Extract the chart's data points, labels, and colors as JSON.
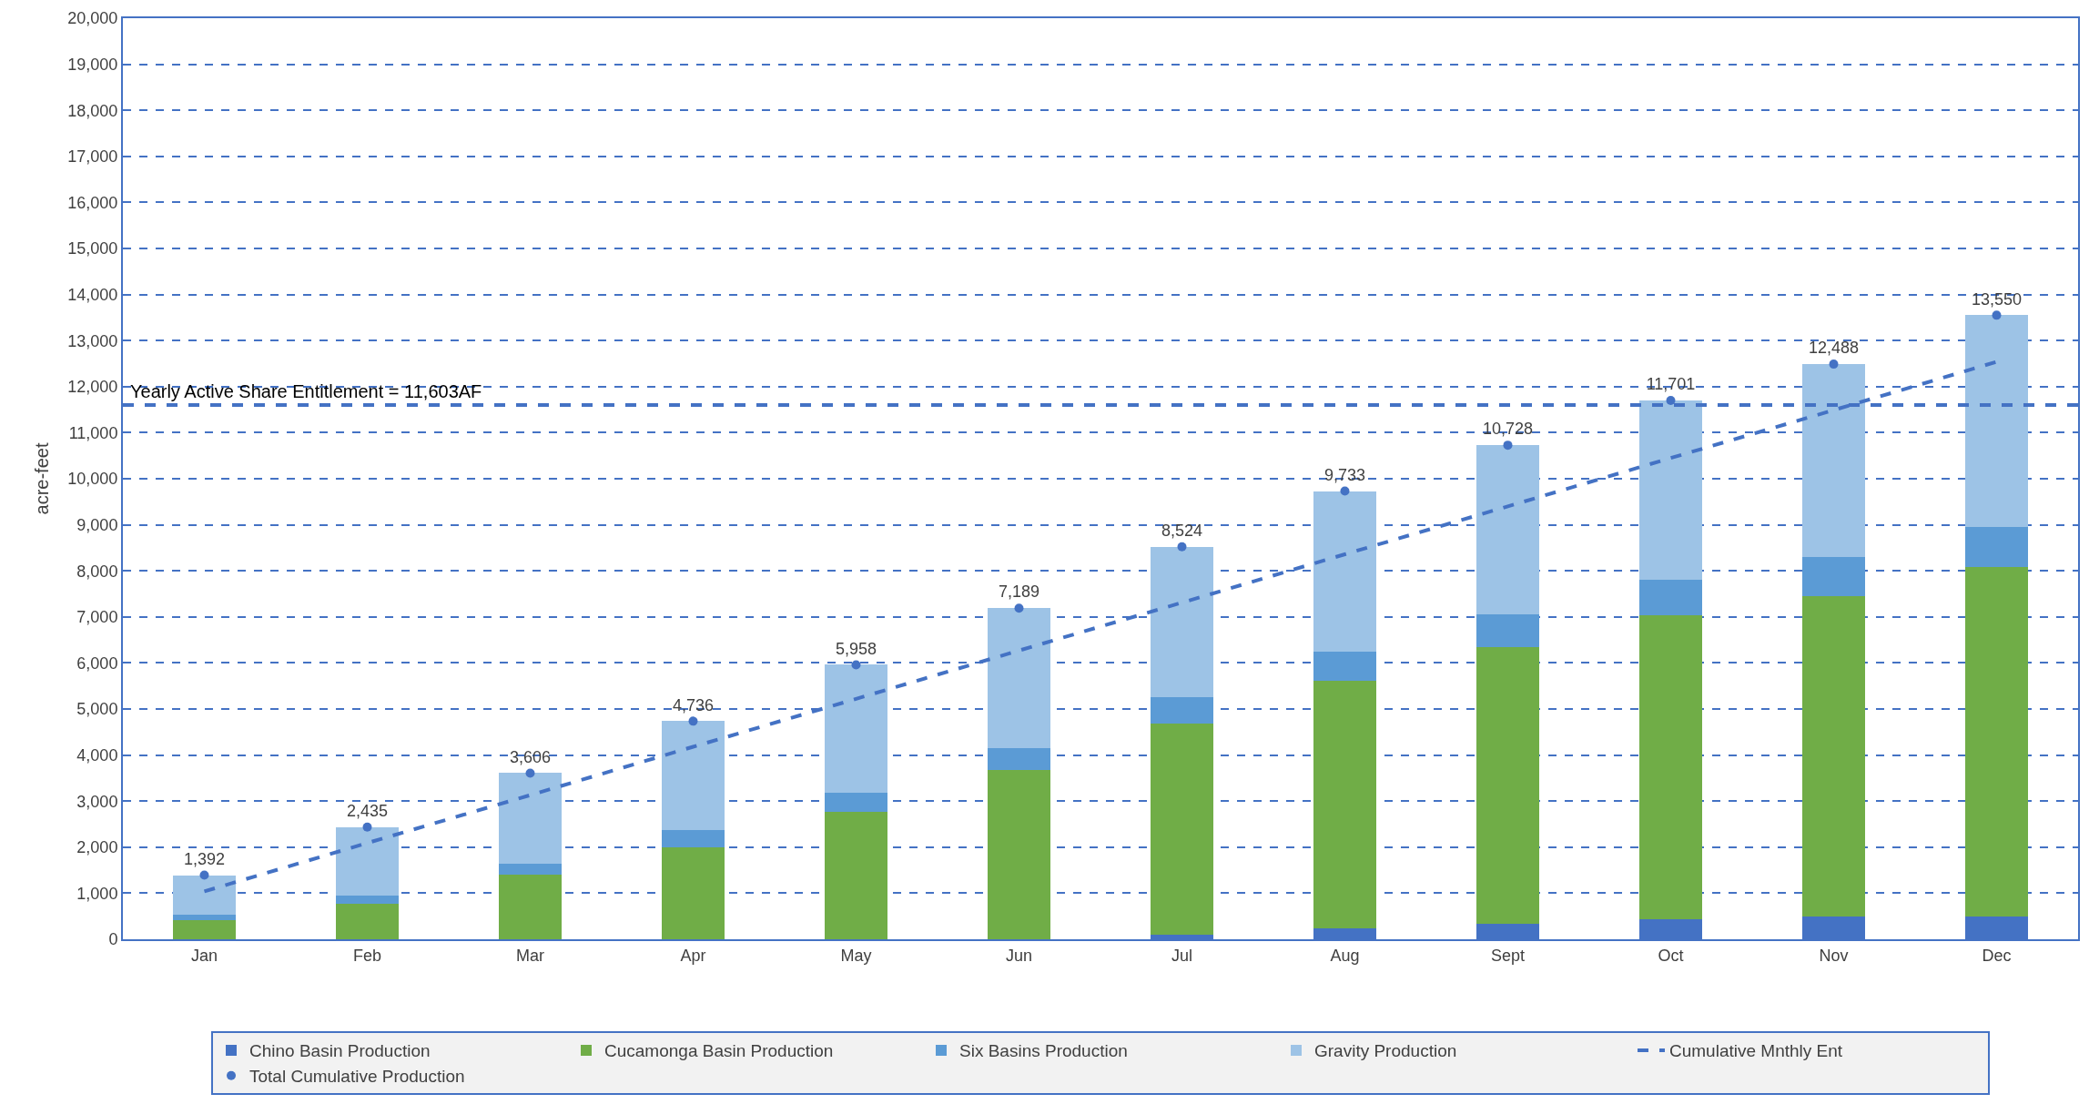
{
  "chart_data": {
    "type": "bar",
    "stacked": true,
    "ylabel": "acre-feet",
    "categories": [
      "Jan",
      "Feb",
      "Mar",
      "Apr",
      "May",
      "Jun",
      "Jul",
      "Aug",
      "Sept",
      "Oct",
      "Nov",
      "Dec"
    ],
    "series": [
      {
        "name": "Chino Basin Production",
        "color": "#4472c4",
        "values": [
          0,
          0,
          0,
          0,
          0,
          0,
          100,
          230,
          330,
          430,
          500,
          500
        ]
      },
      {
        "name": "Cucamonga Basin Production",
        "color": "#70ad47",
        "values": [
          420,
          780,
          1400,
          2000,
          2760,
          3670,
          4580,
          5390,
          6010,
          6610,
          6950,
          7580
        ]
      },
      {
        "name": "Six Basins Production",
        "color": "#5b9bd5",
        "values": [
          110,
          170,
          250,
          380,
          420,
          480,
          570,
          630,
          710,
          760,
          850,
          870
        ]
      },
      {
        "name": "Gravity Production",
        "color": "#9dc3e6",
        "values": [
          860,
          1490,
          1960,
          2360,
          2780,
          3040,
          3270,
          3480,
          3680,
          3900,
          4190,
          4600
        ]
      },
      {
        "name": "Cumulative Mnthly Ent",
        "type": "line",
        "color": "#4472c4",
        "line_style": "dashed",
        "marker": "none",
        "values": [
          1040,
          2090,
          3130,
          4180,
          5220,
          6270,
          7310,
          8360,
          9400,
          10450,
          11490,
          12540
        ]
      },
      {
        "name": "Total Cumulative Production",
        "type": "scatter",
        "color": "#4472c4",
        "marker": "circle",
        "values": [
          1392,
          2435,
          3606,
          4736,
          5958,
          7189,
          8524,
          9733,
          10728,
          11701,
          12488,
          13550
        ],
        "value_labels": [
          "1,392",
          "2,435",
          "3,606",
          "4,736",
          "5,958",
          "7,189",
          "8,524",
          "9,733",
          "10,728",
          "11,701",
          "12,488",
          "13,550"
        ]
      }
    ],
    "ylim": [
      0,
      20000
    ],
    "yticks": [
      {
        "value": 0,
        "label": "0"
      },
      {
        "value": 1000,
        "label": "1,000"
      },
      {
        "value": 2000,
        "label": "2,000"
      },
      {
        "value": 3000,
        "label": "3,000"
      },
      {
        "value": 4000,
        "label": "4,000"
      },
      {
        "value": 5000,
        "label": "5,000"
      },
      {
        "value": 6000,
        "label": "6,000"
      },
      {
        "value": 7000,
        "label": "7,000"
      },
      {
        "value": 8000,
        "label": "8,000"
      },
      {
        "value": 9000,
        "label": "9,000"
      },
      {
        "value": 10000,
        "label": "10,000"
      },
      {
        "value": 11000,
        "label": "11,000"
      },
      {
        "value": 12000,
        "label": "12,000"
      },
      {
        "value": 13000,
        "label": "13,000"
      },
      {
        "value": 14000,
        "label": "14,000"
      },
      {
        "value": 15000,
        "label": "15,000"
      },
      {
        "value": 16000,
        "label": "16,000"
      },
      {
        "value": 17000,
        "label": "17,000"
      },
      {
        "value": 18000,
        "label": "18,000"
      },
      {
        "value": 19000,
        "label": "19,000"
      },
      {
        "value": 20000,
        "label": "20,000"
      }
    ],
    "ref_lines": [
      {
        "axis": "y",
        "value": 11603,
        "label": "Yearly Active Share Entitlement = 11,603AF",
        "color": "#4472c4",
        "line_style": "dashed"
      }
    ],
    "grid": "y",
    "legend": "bottom"
  }
}
